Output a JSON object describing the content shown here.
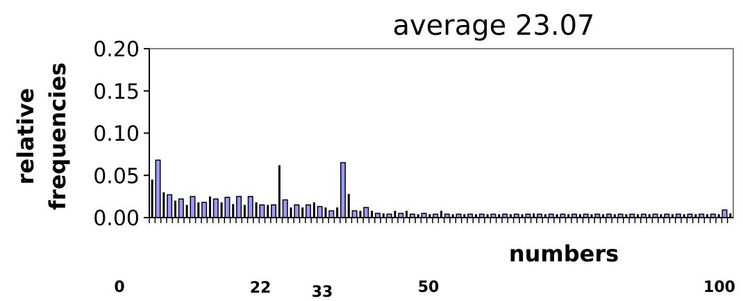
{
  "chart_data": {
    "type": "bar",
    "title": "average 23.07",
    "ylabel_lines": [
      "relative",
      "frequencies"
    ],
    "xlabel": "numbers",
    "ylim": [
      0,
      0.2
    ],
    "yticks": [
      "0.00",
      "0.05",
      "0.10",
      "0.15",
      "0.20"
    ],
    "x_markers": [
      "0",
      "22",
      "33",
      "50",
      "100"
    ],
    "grid": false,
    "colors": {
      "black_bars": "#000000",
      "light_bars": "#9999ff",
      "frame": "#808080"
    },
    "categories": [
      0,
      1,
      2,
      3,
      4,
      5,
      6,
      7,
      8,
      9,
      10,
      11,
      12,
      13,
      14,
      15,
      16,
      17,
      18,
      19,
      20,
      21,
      22,
      23,
      24,
      25,
      26,
      27,
      28,
      29,
      30,
      31,
      32,
      33,
      34,
      35,
      36,
      37,
      38,
      39,
      40,
      41,
      42,
      43,
      44,
      45,
      46,
      47,
      48,
      49,
      50,
      51,
      52,
      53,
      54,
      55,
      56,
      57,
      58,
      59,
      60,
      61,
      62,
      63,
      64,
      65,
      66,
      67,
      68,
      69,
      70,
      71,
      72,
      73,
      74,
      75,
      76,
      77,
      78,
      79,
      80,
      81,
      82,
      83,
      84,
      85,
      86,
      87,
      88,
      89,
      90,
      91,
      92,
      93,
      94,
      95,
      96,
      97,
      98,
      99,
      100
    ],
    "series": [
      {
        "values": [
          0.045,
          0.068,
          0.03,
          0.027,
          0.02,
          0.022,
          0.015,
          0.025,
          0.018,
          0.018,
          0.025,
          0.022,
          0.018,
          0.024,
          0.016,
          0.025,
          0.015,
          0.025,
          0.018,
          0.015,
          0.015,
          0.015,
          0.062,
          0.021,
          0.012,
          0.015,
          0.012,
          0.015,
          0.018,
          0.013,
          0.012,
          0.008,
          0.012,
          0.065,
          0.028,
          0.008,
          0.008,
          0.012,
          0.008,
          0.005,
          0.005,
          0.004,
          0.008,
          0.005,
          0.008,
          0.004,
          0.004,
          0.005,
          0.004,
          0.004,
          0.008,
          0.004,
          0.004,
          0.004,
          0.004,
          0.004,
          0.004,
          0.004,
          0.004,
          0.004,
          0.004,
          0.004,
          0.004,
          0.004,
          0.004,
          0.004,
          0.005,
          0.004,
          0.004,
          0.004,
          0.004,
          0.004,
          0.004,
          0.004,
          0.004,
          0.004,
          0.004,
          0.004,
          0.004,
          0.004,
          0.004,
          0.004,
          0.004,
          0.004,
          0.004,
          0.004,
          0.004,
          0.004,
          0.004,
          0.004,
          0.004,
          0.004,
          0.004,
          0.004,
          0.004,
          0.004,
          0.004,
          0.004,
          0.004,
          0.009,
          0.005
        ]
      }
    ]
  }
}
